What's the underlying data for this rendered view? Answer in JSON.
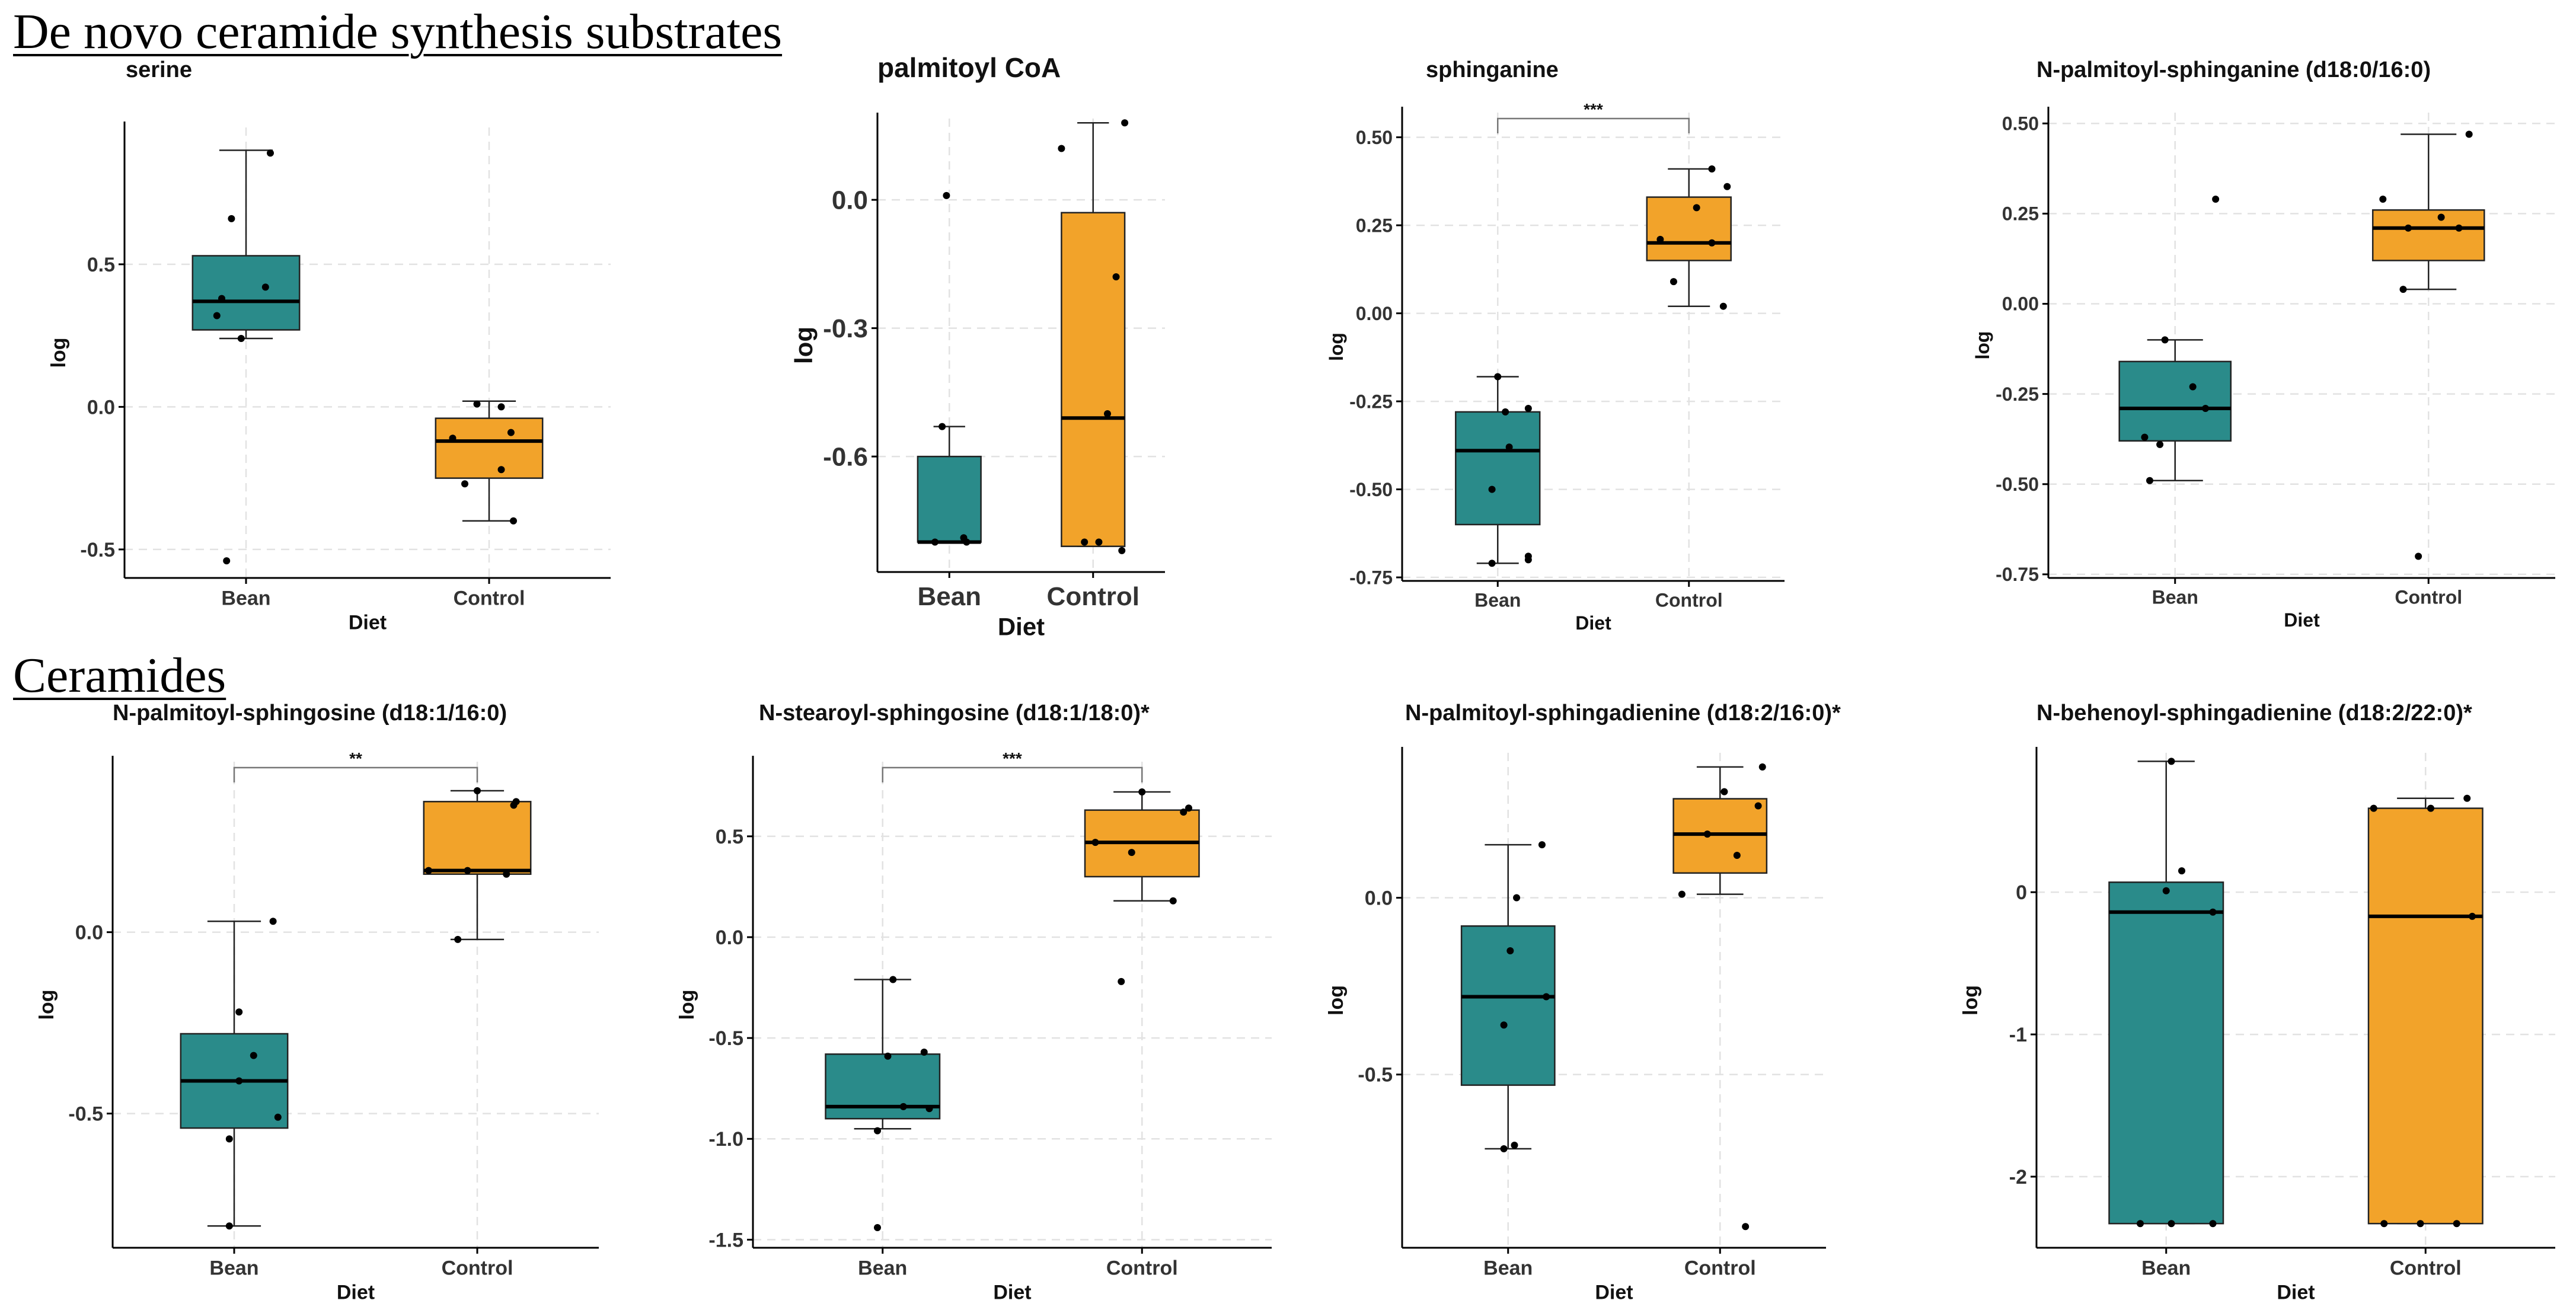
{
  "sections": [
    {
      "title": "De novo ceramide synthesis substrates"
    },
    {
      "title": "Ceramides"
    }
  ],
  "colors": {
    "Bean": "#2a8b8a",
    "Control": "#f2a32a",
    "grid": "#e2e2e2",
    "axis": "#000000"
  },
  "chart_data": [
    {
      "type": "box",
      "title": "serine",
      "xlabel": "Diet",
      "ylabel": "log",
      "categories": [
        "Bean",
        "Control"
      ],
      "ylim": [
        -0.6,
        0.98
      ],
      "yticks": [
        0.5,
        0.0,
        -0.5
      ],
      "ytick_labels": [
        "0.5",
        "0.0",
        "-0.5"
      ],
      "boxes": [
        {
          "group": "Bean",
          "min": 0.24,
          "q1": 0.27,
          "median": 0.37,
          "q3": 0.53,
          "max": 0.9,
          "points": [
            [
              0.1,
              0.89
            ],
            [
              -0.06,
              0.66
            ],
            [
              0.08,
              0.42
            ],
            [
              -0.1,
              0.38
            ],
            [
              -0.12,
              0.32
            ],
            [
              -0.02,
              0.24
            ],
            [
              -0.08,
              -0.54
            ]
          ]
        },
        {
          "group": "Control",
          "min": -0.4,
          "q1": -0.25,
          "median": -0.12,
          "q3": -0.04,
          "max": 0.02,
          "points": [
            [
              -0.05,
              0.01
            ],
            [
              0.05,
              0.0
            ],
            [
              -0.15,
              -0.11
            ],
            [
              0.09,
              -0.09
            ],
            [
              0.05,
              -0.22
            ],
            [
              -0.1,
              -0.27
            ],
            [
              0.1,
              -0.4
            ]
          ]
        }
      ]
    },
    {
      "type": "box",
      "title": "palmitoyl CoA",
      "xlabel": "Diet",
      "ylabel": "log",
      "categories": [
        "Bean",
        "Control"
      ],
      "ylim": [
        -0.87,
        0.19
      ],
      "yticks": [
        0.0,
        -0.3,
        -0.6
      ],
      "ytick_labels": [
        "0.0",
        "-0.3",
        "-0.6"
      ],
      "boxes": [
        {
          "group": "Bean",
          "min": -0.8,
          "q1": -0.8,
          "median": -0.8,
          "q3": -0.6,
          "max": -0.53,
          "points": [
            [
              -0.02,
              0.01
            ],
            [
              -0.05,
              -0.53
            ],
            [
              -0.1,
              -0.8
            ],
            [
              0.12,
              -0.8
            ],
            [
              0.1,
              -0.79
            ]
          ]
        },
        {
          "group": "Control",
          "min": -0.81,
          "q1": -0.81,
          "median": -0.51,
          "q3": -0.03,
          "max": 0.18,
          "points": [
            [
              0.22,
              0.18
            ],
            [
              -0.22,
              0.12
            ],
            [
              0.16,
              -0.18
            ],
            [
              0.1,
              -0.5
            ],
            [
              -0.06,
              -0.8
            ],
            [
              0.04,
              -0.8
            ],
            [
              0.2,
              -0.82
            ]
          ]
        }
      ]
    },
    {
      "type": "box",
      "title": "sphinganine",
      "xlabel": "Diet",
      "ylabel": "log",
      "categories": [
        "Bean",
        "Control"
      ],
      "ylim": [
        -0.76,
        0.57
      ],
      "yticks": [
        0.5,
        0.25,
        0.0,
        -0.25,
        -0.5,
        -0.75
      ],
      "ytick_labels": [
        "0.50",
        "0.25",
        "0.00",
        "-0.25",
        "-0.50",
        "-0.75"
      ],
      "significance": "***",
      "boxes": [
        {
          "group": "Bean",
          "min": -0.71,
          "q1": -0.6,
          "median": -0.39,
          "q3": -0.28,
          "max": -0.18,
          "points": [
            [
              0.0,
              -0.18
            ],
            [
              0.16,
              -0.27
            ],
            [
              0.04,
              -0.28
            ],
            [
              0.06,
              -0.38
            ],
            [
              -0.03,
              -0.5
            ],
            [
              0.16,
              -0.69
            ],
            [
              0.16,
              -0.7
            ],
            [
              -0.03,
              -0.71
            ]
          ]
        },
        {
          "group": "Control",
          "min": 0.02,
          "q1": 0.15,
          "median": 0.2,
          "q3": 0.33,
          "max": 0.41,
          "points": [
            [
              0.12,
              0.41
            ],
            [
              0.2,
              0.36
            ],
            [
              0.04,
              0.3
            ],
            [
              -0.15,
              0.21
            ],
            [
              0.12,
              0.2
            ],
            [
              -0.08,
              0.09
            ],
            [
              0.18,
              0.02
            ]
          ]
        }
      ]
    },
    {
      "type": "box",
      "title": "N-palmitoyl-sphinganine (d18:0/16:0)",
      "xlabel": "Diet",
      "ylabel": "log",
      "categories": [
        "Bean",
        "Control"
      ],
      "ylim": [
        -0.76,
        0.53
      ],
      "yticks": [
        0.5,
        0.25,
        0.0,
        -0.25,
        -0.5,
        -0.75
      ],
      "ytick_labels": [
        "0.50",
        "0.25",
        "0.00",
        "-0.25",
        "-0.50",
        "-0.75"
      ],
      "boxes": [
        {
          "group": "Bean",
          "min": -0.49,
          "q1": -0.38,
          "median": -0.29,
          "q3": -0.16,
          "max": -0.1,
          "points": [
            [
              0.16,
              0.29
            ],
            [
              -0.04,
              -0.1
            ],
            [
              0.07,
              -0.23
            ],
            [
              0.12,
              -0.29
            ],
            [
              -0.12,
              -0.37
            ],
            [
              -0.06,
              -0.39
            ],
            [
              -0.1,
              -0.49
            ]
          ]
        },
        {
          "group": "Control",
          "min": 0.04,
          "q1": 0.12,
          "median": 0.21,
          "q3": 0.26,
          "max": 0.47,
          "points": [
            [
              0.16,
              0.47
            ],
            [
              -0.18,
              0.29
            ],
            [
              0.05,
              0.24
            ],
            [
              -0.08,
              0.21
            ],
            [
              0.12,
              0.21
            ],
            [
              -0.1,
              0.04
            ],
            [
              -0.04,
              -0.7
            ]
          ]
        }
      ]
    },
    {
      "type": "box",
      "title": "N-palmitoyl-sphingosine (d18:1/16:0)",
      "xlabel": "Diet",
      "ylabel": "log",
      "categories": [
        "Bean",
        "Control"
      ],
      "ylim": [
        -0.87,
        0.47
      ],
      "yticks": [
        0.0,
        -0.5
      ],
      "ytick_labels": [
        "0.0",
        "-0.5"
      ],
      "significance": "**",
      "boxes": [
        {
          "group": "Bean",
          "min": -0.81,
          "q1": -0.54,
          "median": -0.41,
          "q3": -0.28,
          "max": 0.03,
          "points": [
            [
              0.16,
              0.03
            ],
            [
              0.02,
              -0.22
            ],
            [
              0.08,
              -0.34
            ],
            [
              0.02,
              -0.41
            ],
            [
              0.18,
              -0.51
            ],
            [
              -0.02,
              -0.57
            ],
            [
              -0.02,
              -0.81
            ]
          ]
        },
        {
          "group": "Control",
          "min": -0.02,
          "q1": 0.16,
          "median": 0.17,
          "q3": 0.36,
          "max": 0.39,
          "points": [
            [
              0.0,
              0.39
            ],
            [
              0.16,
              0.36
            ],
            [
              0.15,
              0.35
            ],
            [
              -0.2,
              0.17
            ],
            [
              -0.04,
              0.17
            ],
            [
              0.12,
              0.16
            ],
            [
              -0.08,
              -0.02
            ]
          ]
        }
      ]
    },
    {
      "type": "box",
      "title": "N-stearoyl-sphingosine (d18:1/18:0)*",
      "xlabel": "Diet",
      "ylabel": "log",
      "categories": [
        "Bean",
        "Control"
      ],
      "ylim": [
        -1.54,
        0.87
      ],
      "yticks": [
        0.5,
        0.0,
        -0.5,
        -1.0,
        -1.5
      ],
      "ytick_labels": [
        "0.5",
        "0.0",
        "-0.5",
        "-1.0",
        "-1.5"
      ],
      "significance": "***",
      "boxes": [
        {
          "group": "Bean",
          "min": -0.95,
          "q1": -0.9,
          "median": -0.84,
          "q3": -0.58,
          "max": -0.21,
          "points": [
            [
              0.04,
              -0.21
            ],
            [
              0.16,
              -0.57
            ],
            [
              0.02,
              -0.59
            ],
            [
              0.08,
              -0.84
            ],
            [
              0.18,
              -0.85
            ],
            [
              -0.02,
              -0.96
            ],
            [
              -0.02,
              -1.44
            ]
          ]
        },
        {
          "group": "Control",
          "min": 0.18,
          "q1": 0.3,
          "median": 0.47,
          "q3": 0.63,
          "max": 0.72,
          "points": [
            [
              0.0,
              0.72
            ],
            [
              0.18,
              0.64
            ],
            [
              0.16,
              0.62
            ],
            [
              -0.18,
              0.47
            ],
            [
              -0.04,
              0.42
            ],
            [
              0.12,
              0.18
            ],
            [
              -0.08,
              -0.22
            ]
          ]
        }
      ]
    },
    {
      "type": "box",
      "title": "N-palmitoyl-sphingadienine (d18:2/16:0)*",
      "xlabel": "Diet",
      "ylabel": "log",
      "categories": [
        "Bean",
        "Control"
      ],
      "ylim": [
        -0.99,
        0.41
      ],
      "yticks": [
        0.0,
        -0.5
      ],
      "ytick_labels": [
        "0.0",
        "-0.5"
      ],
      "boxes": [
        {
          "group": "Bean",
          "min": -0.71,
          "q1": -0.53,
          "median": -0.28,
          "q3": -0.08,
          "max": 0.15,
          "points": [
            [
              0.16,
              0.15
            ],
            [
              0.04,
              0.0
            ],
            [
              0.01,
              -0.15
            ],
            [
              0.18,
              -0.28
            ],
            [
              -0.02,
              -0.36
            ],
            [
              0.03,
              -0.7
            ],
            [
              -0.02,
              -0.71
            ]
          ]
        },
        {
          "group": "Control",
          "min": 0.01,
          "q1": 0.07,
          "median": 0.18,
          "q3": 0.28,
          "max": 0.37,
          "points": [
            [
              0.2,
              0.37
            ],
            [
              0.02,
              0.3
            ],
            [
              0.18,
              0.26
            ],
            [
              -0.06,
              0.18
            ],
            [
              0.08,
              0.12
            ],
            [
              -0.18,
              0.01
            ],
            [
              0.12,
              -0.93
            ]
          ]
        }
      ]
    },
    {
      "type": "box",
      "title": "N-behenoyl-sphingadienine (d18:2/22:0)*",
      "xlabel": "Diet",
      "ylabel": "log",
      "categories": [
        "Bean",
        "Control"
      ],
      "ylim": [
        -2.5,
        0.98
      ],
      "yticks": [
        0,
        -1,
        -2
      ],
      "ytick_labels": [
        "0",
        "-1",
        "-2"
      ],
      "boxes": [
        {
          "group": "Bean",
          "min": -2.33,
          "q1": -2.33,
          "median": -0.14,
          "q3": 0.07,
          "max": 0.92,
          "points": [
            [
              0.02,
              0.92
            ],
            [
              0.06,
              0.15
            ],
            [
              0.0,
              0.01
            ],
            [
              0.18,
              -0.14
            ],
            [
              -0.1,
              -2.33
            ],
            [
              0.02,
              -2.33
            ],
            [
              0.18,
              -2.33
            ]
          ]
        },
        {
          "group": "Control",
          "min": -2.33,
          "q1": -2.33,
          "median": -0.17,
          "q3": 0.59,
          "max": 0.66,
          "points": [
            [
              0.16,
              0.66
            ],
            [
              -0.2,
              0.59
            ],
            [
              0.02,
              0.59
            ],
            [
              0.18,
              -0.17
            ],
            [
              -0.16,
              -2.33
            ],
            [
              -0.02,
              -2.33
            ],
            [
              0.12,
              -2.33
            ]
          ]
        }
      ]
    }
  ]
}
